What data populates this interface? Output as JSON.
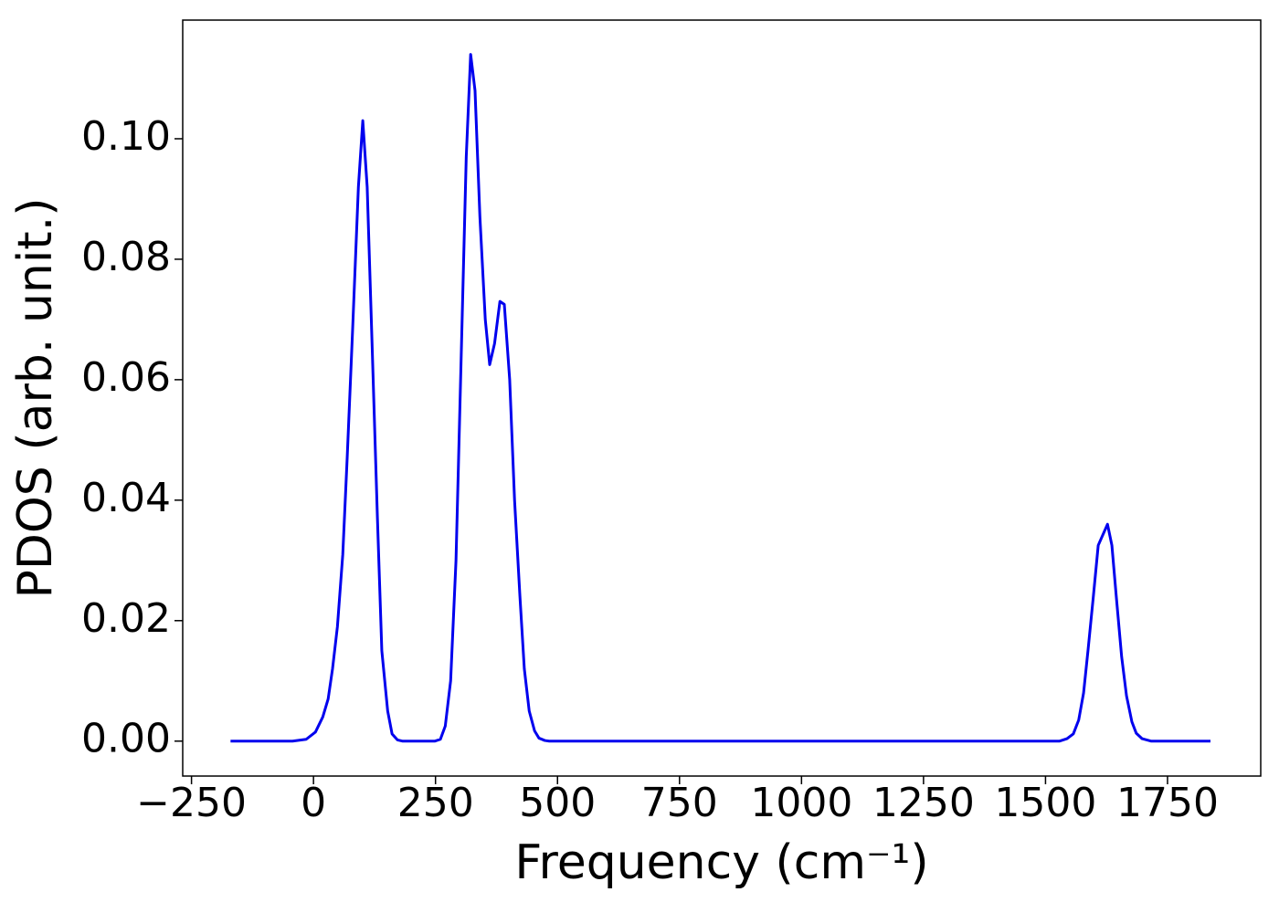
{
  "chart_data": {
    "type": "line",
    "xlabel": "Frequency (cm⁻¹)",
    "ylabel": "PDOS (arb. unit.)",
    "color": "#0000ee",
    "x": [
      -170,
      -43,
      -15,
      4,
      19,
      30,
      39,
      49,
      60,
      69,
      80,
      92,
      101,
      110,
      120,
      131,
      140,
      152,
      161,
      172,
      182,
      249,
      260,
      270,
      281,
      292,
      303,
      313,
      322,
      331,
      341,
      352,
      361,
      371,
      382,
      391,
      402,
      412,
      423,
      432,
      442,
      453,
      462,
      474,
      483,
      1529,
      1544,
      1557,
      1568,
      1578,
      1587,
      1598,
      1608,
      1627,
      1636,
      1645,
      1656,
      1666,
      1677,
      1686,
      1698,
      1716,
      1838
    ],
    "values": [
      0,
      0,
      0.0003,
      0.0015,
      0.004,
      0.007,
      0.012,
      0.019,
      0.031,
      0.047,
      0.068,
      0.092,
      0.103,
      0.092,
      0.066,
      0.037,
      0.015,
      0.005,
      0.0012,
      0.0002,
      0,
      0,
      0.0003,
      0.0025,
      0.01,
      0.03,
      0.065,
      0.097,
      0.114,
      0.108,
      0.087,
      0.07,
      0.0625,
      0.066,
      0.073,
      0.0725,
      0.06,
      0.04,
      0.024,
      0.012,
      0.005,
      0.0017,
      0.0005,
      0.0001,
      0,
      0,
      0.0004,
      0.0012,
      0.0035,
      0.008,
      0.015,
      0.024,
      0.0325,
      0.036,
      0.0325,
      0.024,
      0.014,
      0.0075,
      0.0032,
      0.0013,
      0.0004,
      0,
      0
    ],
    "xlim": [
      -268,
      1941
    ],
    "ylim": [
      -0.0058,
      0.1197
    ],
    "xticks": [
      {
        "value": -250,
        "label": "−250"
      },
      0,
      250,
      500,
      750,
      1000,
      1250,
      1500,
      1750
    ],
    "yticks": [
      {
        "value": 0,
        "label": "0.00"
      },
      {
        "value": 0.02,
        "label": "0.02"
      },
      {
        "value": 0.04,
        "label": "0.04"
      },
      {
        "value": 0.06,
        "label": "0.06"
      },
      {
        "value": 0.08,
        "label": "0.08"
      },
      {
        "value": 0.1,
        "label": "0.10"
      }
    ]
  }
}
